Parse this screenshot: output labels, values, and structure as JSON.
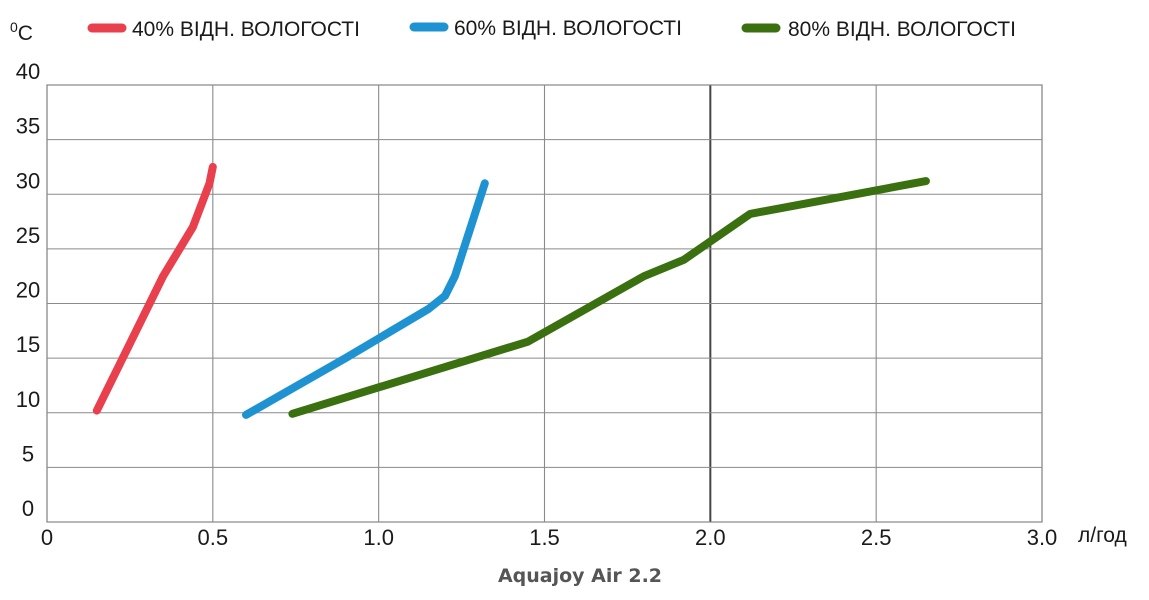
{
  "chart_data": {
    "type": "line",
    "title": "",
    "caption": "Aquajoy Air 2.2",
    "ylabel": "C",
    "ylabel_superscript": "0",
    "xlabel": "л/год",
    "xlim": [
      0,
      3.0
    ],
    "ylim": [
      0,
      40
    ],
    "x_ticks": [
      "0",
      "0.5",
      "1.0",
      "1.5",
      "2.0",
      "2.5",
      "3.0"
    ],
    "y_ticks": [
      "0",
      "5",
      "10",
      "15",
      "20",
      "25",
      "30",
      "35",
      "40"
    ],
    "grid": true,
    "legend_position": "top",
    "series": [
      {
        "name": "40% ВІДН. ВОЛОГОСТІ",
        "color": "#e8404c",
        "points": [
          [
            0.15,
            10.2
          ],
          [
            0.22,
            14.5
          ],
          [
            0.35,
            22.5
          ],
          [
            0.44,
            27.0
          ],
          [
            0.49,
            31.0
          ],
          [
            0.5,
            32.5
          ]
        ]
      },
      {
        "name": "60% ВІДН. ВОЛОГОСТІ",
        "color": "#1f93d1",
        "points": [
          [
            0.6,
            9.8
          ],
          [
            0.9,
            15.0
          ],
          [
            1.15,
            19.5
          ],
          [
            1.2,
            20.7
          ],
          [
            1.23,
            22.5
          ],
          [
            1.32,
            31.0
          ]
        ]
      },
      {
        "name": "80% ВІДН. ВОЛОГОСТІ",
        "color": "#3b7010",
        "points": [
          [
            0.74,
            9.9
          ],
          [
            1.45,
            16.5
          ],
          [
            1.8,
            22.5
          ],
          [
            1.92,
            24.0
          ],
          [
            2.12,
            28.2
          ],
          [
            2.65,
            31.2
          ]
        ]
      }
    ]
  }
}
